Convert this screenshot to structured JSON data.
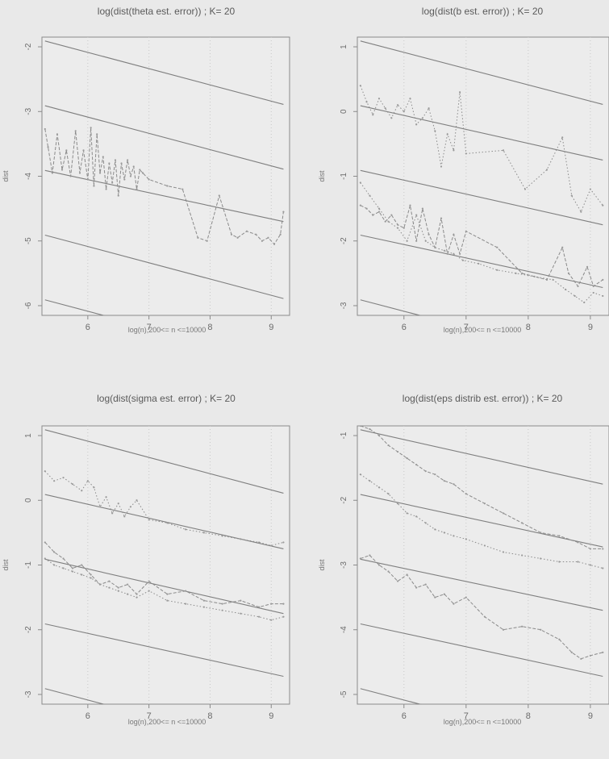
{
  "chart_data": [
    {
      "type": "line",
      "title": "log(dist(theta est. error)) ; K= 20",
      "xlabel": "log(n),200<= n <=10000",
      "ylabel": "dist",
      "xlim": [
        5.25,
        9.3
      ],
      "ylim": [
        -6.15,
        -1.85
      ],
      "xticks": [
        6,
        7,
        8,
        9
      ],
      "yticks": [
        -2,
        -3,
        -4,
        -5,
        -6
      ],
      "ytick_labels": [
        "-2",
        "-3",
        "-4",
        "-5",
        "-6"
      ],
      "reference_lines": [
        {
          "x": [
            5.3,
            9.2
          ],
          "y": [
            -1.91,
            -2.89
          ]
        },
        {
          "x": [
            5.3,
            9.2
          ],
          "y": [
            -2.91,
            -3.89
          ]
        },
        {
          "x": [
            5.3,
            9.2
          ],
          "y": [
            -3.91,
            -4.7
          ]
        },
        {
          "x": [
            5.3,
            9.2
          ],
          "y": [
            -4.91,
            -5.89
          ]
        },
        {
          "x": [
            5.3,
            9.2
          ],
          "y": [
            -5.91,
            -6.89
          ]
        }
      ],
      "series": [
        {
          "style": "dashed",
          "x": [
            5.3,
            5.35,
            5.42,
            5.5,
            5.58,
            5.65,
            5.72,
            5.8,
            5.87,
            5.93,
            6.0,
            6.05,
            6.1,
            6.15,
            6.2,
            6.25,
            6.3,
            6.35,
            6.4,
            6.45,
            6.5,
            6.55,
            6.6,
            6.65,
            6.7,
            6.75,
            6.8,
            6.85,
            6.9,
            7.0,
            7.3,
            7.55,
            7.8,
            7.95,
            8.15,
            8.35,
            8.45,
            8.6,
            8.75,
            8.85,
            8.95,
            9.05,
            9.15,
            9.2
          ],
          "y": [
            -3.27,
            -3.55,
            -3.95,
            -3.35,
            -3.9,
            -3.6,
            -4.0,
            -3.3,
            -3.95,
            -3.6,
            -4.05,
            -3.25,
            -4.15,
            -3.35,
            -3.95,
            -3.7,
            -4.2,
            -3.8,
            -4.1,
            -3.75,
            -4.3,
            -3.8,
            -4.05,
            -3.75,
            -4.0,
            -3.85,
            -4.2,
            -3.9,
            -3.95,
            -4.05,
            -4.15,
            -4.2,
            -4.95,
            -5.0,
            -4.3,
            -4.9,
            -4.95,
            -4.85,
            -4.9,
            -5.0,
            -4.95,
            -5.05,
            -4.9,
            -4.55
          ]
        }
      ]
    },
    {
      "type": "line",
      "title": "log(dist(b est. error)) ; K= 20",
      "xlabel": "log(n),200<= n <=10000",
      "ylabel": "dist",
      "xlim": [
        5.25,
        9.3
      ],
      "ylim": [
        -3.15,
        1.15
      ],
      "xticks": [
        6,
        7,
        8,
        9
      ],
      "yticks": [
        1,
        0,
        -1,
        -2,
        -3
      ],
      "ytick_labels": [
        "1",
        "0",
        "-1",
        "-2",
        "-3"
      ],
      "reference_lines": [
        {
          "x": [
            5.3,
            9.2
          ],
          "y": [
            1.09,
            0.11
          ]
        },
        {
          "x": [
            5.3,
            9.2
          ],
          "y": [
            0.09,
            -0.75
          ]
        },
        {
          "x": [
            5.3,
            9.2
          ],
          "y": [
            -0.91,
            -1.75
          ]
        },
        {
          "x": [
            5.3,
            9.2
          ],
          "y": [
            -1.91,
            -2.72
          ]
        },
        {
          "x": [
            5.3,
            9.2
          ],
          "y": [
            -2.91,
            -3.89
          ]
        }
      ],
      "series": [
        {
          "style": "dotted",
          "x": [
            5.3,
            5.4,
            5.5,
            5.6,
            5.7,
            5.8,
            5.9,
            6.0,
            6.1,
            6.2,
            6.3,
            6.4,
            6.5,
            6.6,
            6.7,
            6.8,
            6.9,
            7.0,
            7.6,
            7.95,
            8.3,
            8.55,
            8.7,
            8.85,
            9.0,
            9.2
          ],
          "y": [
            0.4,
            0.15,
            -0.05,
            0.2,
            0.05,
            -0.1,
            0.1,
            0.0,
            0.2,
            -0.2,
            -0.1,
            0.05,
            -0.3,
            -0.85,
            -0.35,
            -0.6,
            0.3,
            -0.65,
            -0.6,
            -1.2,
            -0.9,
            -0.4,
            -1.3,
            -1.55,
            -1.2,
            -1.45
          ]
        },
        {
          "style": "dashed",
          "x": [
            5.3,
            5.4,
            5.5,
            5.6,
            5.7,
            5.8,
            5.9,
            6.0,
            6.1,
            6.2,
            6.3,
            6.4,
            6.5,
            6.6,
            6.7,
            6.8,
            6.9,
            7.0,
            7.5,
            7.9,
            8.3,
            8.55,
            8.65,
            8.8,
            8.95,
            9.05,
            9.2
          ],
          "y": [
            -1.45,
            -1.5,
            -1.6,
            -1.55,
            -1.7,
            -1.6,
            -1.75,
            -1.8,
            -1.45,
            -2.0,
            -1.5,
            -1.9,
            -2.1,
            -1.65,
            -2.2,
            -1.9,
            -2.2,
            -1.85,
            -2.1,
            -2.5,
            -2.6,
            -2.1,
            -2.5,
            -2.7,
            -2.4,
            -2.7,
            -2.6
          ]
        },
        {
          "style": "dotted",
          "x": [
            5.3,
            5.45,
            5.6,
            5.75,
            5.9,
            6.05,
            6.2,
            6.35,
            6.5,
            6.65,
            6.8,
            6.95,
            7.2,
            7.5,
            7.8,
            8.1,
            8.4,
            8.6,
            8.75,
            8.9,
            9.05,
            9.2
          ],
          "y": [
            -1.1,
            -1.3,
            -1.5,
            -1.7,
            -1.8,
            -2.0,
            -1.6,
            -2.0,
            -2.1,
            -2.15,
            -2.2,
            -2.3,
            -2.35,
            -2.45,
            -2.5,
            -2.55,
            -2.6,
            -2.75,
            -2.85,
            -2.95,
            -2.8,
            -2.85
          ]
        }
      ]
    },
    {
      "type": "line",
      "title": "log(dist(sigma est. error) ; K= 20",
      "xlabel": "log(n),200<= n <=10000",
      "ylabel": "dist",
      "xlim": [
        5.25,
        9.3
      ],
      "ylim": [
        -3.15,
        1.15
      ],
      "xticks": [
        6,
        7,
        8,
        9
      ],
      "yticks": [
        1,
        0,
        -1,
        -2,
        -3
      ],
      "ytick_labels": [
        "1",
        "0",
        "-1",
        "-2",
        "-3"
      ],
      "reference_lines": [
        {
          "x": [
            5.3,
            9.2
          ],
          "y": [
            1.09,
            0.11
          ]
        },
        {
          "x": [
            5.3,
            9.2
          ],
          "y": [
            0.09,
            -0.75
          ]
        },
        {
          "x": [
            5.3,
            9.2
          ],
          "y": [
            -0.91,
            -1.75
          ]
        },
        {
          "x": [
            5.3,
            9.2
          ],
          "y": [
            -1.91,
            -2.72
          ]
        },
        {
          "x": [
            5.3,
            9.2
          ],
          "y": [
            -2.91,
            -3.89
          ]
        }
      ],
      "series": [
        {
          "style": "dotted",
          "x": [
            5.3,
            5.45,
            5.6,
            5.75,
            5.9,
            6.0,
            6.1,
            6.2,
            6.3,
            6.4,
            6.5,
            6.6,
            6.7,
            6.8,
            7.0,
            7.3,
            7.6,
            7.9,
            8.2,
            8.5,
            8.8,
            9.0,
            9.2
          ],
          "y": [
            0.45,
            0.3,
            0.35,
            0.25,
            0.15,
            0.3,
            0.2,
            -0.1,
            0.05,
            -0.2,
            -0.05,
            -0.25,
            -0.1,
            0.0,
            -0.3,
            -0.35,
            -0.45,
            -0.5,
            -0.55,
            -0.6,
            -0.65,
            -0.7,
            -0.65
          ]
        },
        {
          "style": "dashed",
          "x": [
            5.3,
            5.45,
            5.6,
            5.75,
            5.9,
            6.05,
            6.2,
            6.35,
            6.5,
            6.65,
            6.8,
            7.0,
            7.3,
            7.6,
            7.9,
            8.2,
            8.5,
            8.8,
            9.0,
            9.2
          ],
          "y": [
            -0.65,
            -0.8,
            -0.9,
            -1.05,
            -1.0,
            -1.15,
            -1.3,
            -1.25,
            -1.35,
            -1.3,
            -1.45,
            -1.25,
            -1.45,
            -1.4,
            -1.55,
            -1.6,
            -1.55,
            -1.65,
            -1.6,
            -1.6
          ]
        },
        {
          "style": "dotted",
          "x": [
            5.3,
            5.45,
            5.6,
            5.75,
            5.9,
            6.05,
            6.2,
            6.35,
            6.5,
            6.65,
            6.8,
            7.0,
            7.3,
            7.6,
            7.9,
            8.2,
            8.5,
            8.8,
            9.0,
            9.2
          ],
          "y": [
            -0.9,
            -1.0,
            -1.05,
            -1.1,
            -1.15,
            -1.2,
            -1.3,
            -1.35,
            -1.4,
            -1.45,
            -1.5,
            -1.4,
            -1.55,
            -1.6,
            -1.65,
            -1.7,
            -1.75,
            -1.8,
            -1.85,
            -1.8
          ]
        }
      ]
    },
    {
      "type": "line",
      "title": "log(dist(eps distrib est. error)) ; K= 20",
      "xlabel": "log(n),200<= n <=10000",
      "ylabel": "dist",
      "xlim": [
        5.25,
        9.3
      ],
      "ylim": [
        -5.15,
        -0.85
      ],
      "xticks": [
        6,
        7,
        8,
        9
      ],
      "yticks": [
        -1,
        -2,
        -3,
        -4,
        -5
      ],
      "ytick_labels": [
        "-1",
        "-2",
        "-3",
        "-4",
        "-5"
      ],
      "reference_lines": [
        {
          "x": [
            5.3,
            9.2
          ],
          "y": [
            -0.91,
            -1.75
          ]
        },
        {
          "x": [
            5.3,
            9.2
          ],
          "y": [
            -1.91,
            -2.72
          ]
        },
        {
          "x": [
            5.3,
            9.2
          ],
          "y": [
            -2.91,
            -3.7
          ]
        },
        {
          "x": [
            5.3,
            9.2
          ],
          "y": [
            -3.91,
            -4.72
          ]
        },
        {
          "x": [
            5.3,
            9.2
          ],
          "y": [
            -4.91,
            -5.89
          ]
        }
      ],
      "series": [
        {
          "style": "dashed",
          "x": [
            5.3,
            5.45,
            5.6,
            5.75,
            5.9,
            6.05,
            6.2,
            6.35,
            6.5,
            6.65,
            6.8,
            7.0,
            7.3,
            7.6,
            7.9,
            8.2,
            8.5,
            8.8,
            9.0,
            9.2
          ],
          "y": [
            -0.85,
            -0.9,
            -1.0,
            -1.15,
            -1.25,
            -1.35,
            -1.45,
            -1.55,
            -1.6,
            -1.7,
            -1.75,
            -1.9,
            -2.05,
            -2.2,
            -2.35,
            -2.5,
            -2.55,
            -2.65,
            -2.75,
            -2.75
          ]
        },
        {
          "style": "dotted",
          "x": [
            5.3,
            5.45,
            5.6,
            5.75,
            5.9,
            6.05,
            6.2,
            6.35,
            6.5,
            6.65,
            6.8,
            7.0,
            7.3,
            7.6,
            7.9,
            8.2,
            8.5,
            8.8,
            9.0,
            9.2
          ],
          "y": [
            -1.6,
            -1.7,
            -1.8,
            -1.9,
            -2.05,
            -2.2,
            -2.25,
            -2.35,
            -2.45,
            -2.5,
            -2.55,
            -2.6,
            -2.7,
            -2.8,
            -2.85,
            -2.9,
            -2.95,
            -2.95,
            -3.0,
            -3.05
          ]
        },
        {
          "style": "dashed",
          "x": [
            5.3,
            5.45,
            5.6,
            5.75,
            5.9,
            6.05,
            6.2,
            6.35,
            6.5,
            6.65,
            6.8,
            7.0,
            7.3,
            7.6,
            7.9,
            8.2,
            8.5,
            8.7,
            8.85,
            9.0,
            9.2
          ],
          "y": [
            -2.9,
            -2.85,
            -3.0,
            -3.1,
            -3.25,
            -3.15,
            -3.35,
            -3.3,
            -3.5,
            -3.45,
            -3.6,
            -3.5,
            -3.8,
            -4.0,
            -3.95,
            -4.0,
            -4.15,
            -4.35,
            -4.45,
            -4.4,
            -4.35
          ]
        }
      ]
    }
  ]
}
